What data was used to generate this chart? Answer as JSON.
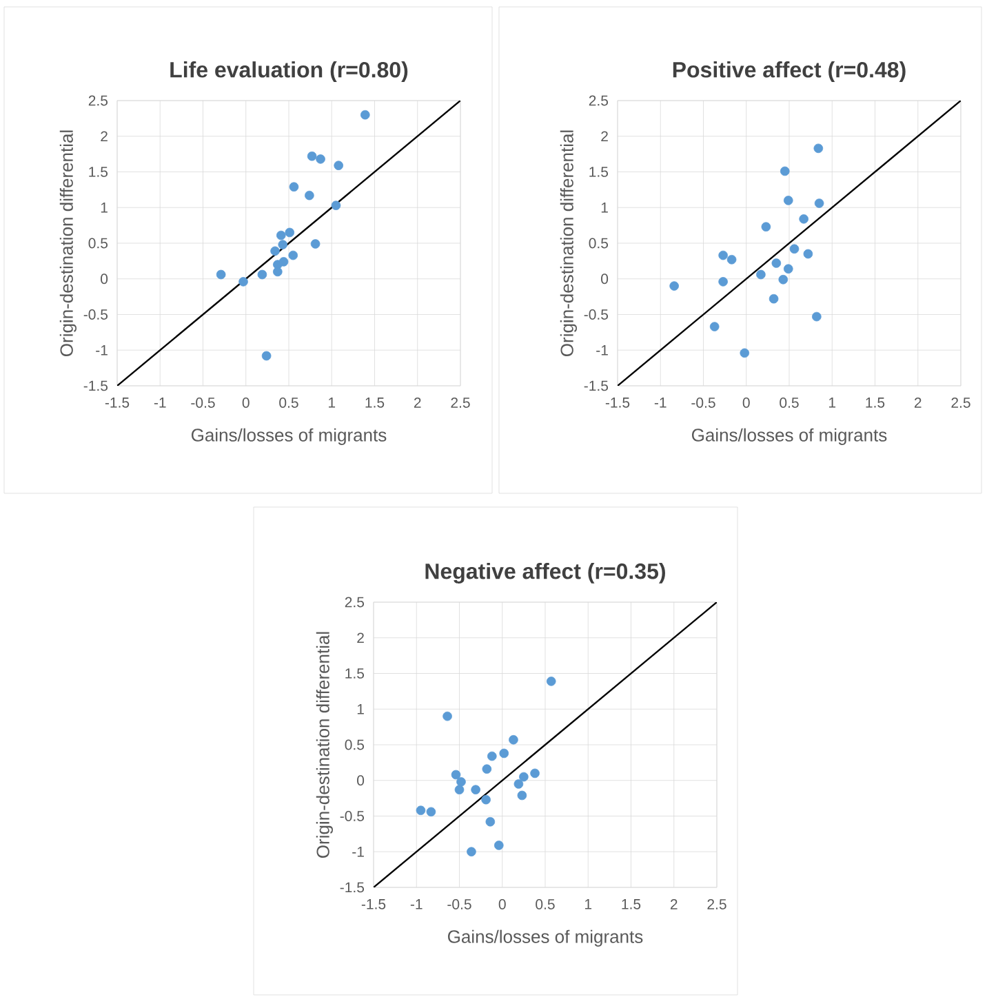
{
  "chart_data": [
    {
      "type": "scatter",
      "title": "Life evaluation (r=0.80)",
      "xlabel": "Gains/losses of migrants",
      "ylabel": "Origin-destination differential",
      "xlim": [
        -1.5,
        2.5
      ],
      "ylim": [
        -1.5,
        2.5
      ],
      "xticks": [
        -1.5,
        -1,
        -0.5,
        0,
        0.5,
        1,
        1.5,
        2,
        2.5
      ],
      "yticks": [
        -1.5,
        -1,
        -0.5,
        0,
        0.5,
        1,
        1.5,
        2,
        2.5
      ],
      "grid": true,
      "series": [
        {
          "color": "#5b9bd5",
          "marker": "circle",
          "x": [
            -0.29,
            -0.03,
            0.19,
            0.34,
            0.41,
            0.51,
            0.43,
            0.37,
            0.37,
            0.44,
            0.55,
            0.81,
            0.56,
            0.74,
            0.77,
            0.87,
            1.08,
            1.05,
            1.39,
            0.24
          ],
          "values": [
            0.06,
            -0.04,
            0.06,
            0.39,
            0.61,
            0.65,
            0.48,
            0.2,
            0.1,
            0.24,
            0.33,
            0.49,
            1.29,
            1.17,
            1.72,
            1.68,
            1.59,
            1.03,
            2.3,
            -1.08
          ]
        },
        {
          "type": "line",
          "color": "#000000",
          "marker": "none",
          "x": [
            -1.5,
            2.5
          ],
          "values": [
            -1.5,
            2.5
          ]
        }
      ]
    },
    {
      "type": "scatter",
      "title": "Positive affect (r=0.48)",
      "xlabel": "Gains/losses of migrants",
      "ylabel": "Origin-destination differential",
      "xlim": [
        -1.5,
        2.5
      ],
      "ylim": [
        -1.5,
        2.5
      ],
      "xticks": [
        -1.5,
        -1,
        -0.5,
        0,
        0.5,
        1,
        1.5,
        2,
        2.5
      ],
      "yticks": [
        -1.5,
        -1,
        -0.5,
        0,
        0.5,
        1,
        1.5,
        2,
        2.5
      ],
      "grid": true,
      "series": [
        {
          "color": "#5b9bd5",
          "marker": "circle",
          "x": [
            -0.84,
            -0.27,
            -0.17,
            -0.27,
            -0.37,
            -0.02,
            0.17,
            0.23,
            0.35,
            0.32,
            0.43,
            0.49,
            0.56,
            0.72,
            0.67,
            0.49,
            0.45,
            0.84,
            0.85,
            0.82
          ],
          "values": [
            -0.1,
            0.33,
            0.27,
            -0.04,
            -0.67,
            -1.04,
            0.06,
            0.73,
            0.22,
            -0.28,
            -0.01,
            0.14,
            0.42,
            0.35,
            0.84,
            1.1,
            1.51,
            1.83,
            1.06,
            -0.53
          ]
        },
        {
          "type": "line",
          "color": "#000000",
          "marker": "none",
          "x": [
            -1.5,
            2.5
          ],
          "values": [
            -1.5,
            2.5
          ]
        }
      ]
    },
    {
      "type": "scatter",
      "title": "Negative affect (r=0.35)",
      "xlabel": "Gains/losses of migrants",
      "ylabel": "Origin-destination differential",
      "xlim": [
        -1.5,
        2.5
      ],
      "ylim": [
        -1.5,
        2.5
      ],
      "xticks": [
        -1.5,
        -1,
        -0.5,
        0,
        0.5,
        1,
        1.5,
        2,
        2.5
      ],
      "yticks": [
        -1.5,
        -1,
        -0.5,
        0,
        0.5,
        1,
        1.5,
        2,
        2.5
      ],
      "grid": true,
      "series": [
        {
          "color": "#5b9bd5",
          "marker": "circle",
          "x": [
            -0.95,
            -0.83,
            -0.64,
            -0.54,
            -0.48,
            -0.5,
            -0.31,
            -0.19,
            -0.18,
            -0.12,
            0.02,
            0.13,
            -0.14,
            -0.04,
            -0.36,
            0.19,
            0.25,
            0.23,
            0.38,
            0.57
          ],
          "values": [
            -0.42,
            -0.44,
            0.9,
            0.08,
            -0.02,
            -0.13,
            -0.13,
            -0.27,
            0.16,
            0.34,
            0.38,
            0.57,
            -0.58,
            -0.91,
            -1.0,
            -0.05,
            0.05,
            -0.21,
            0.1,
            1.39
          ]
        },
        {
          "type": "line",
          "color": "#000000",
          "marker": "none",
          "x": [
            -1.5,
            2.5
          ],
          "values": [
            -1.5,
            2.5
          ]
        }
      ]
    }
  ]
}
